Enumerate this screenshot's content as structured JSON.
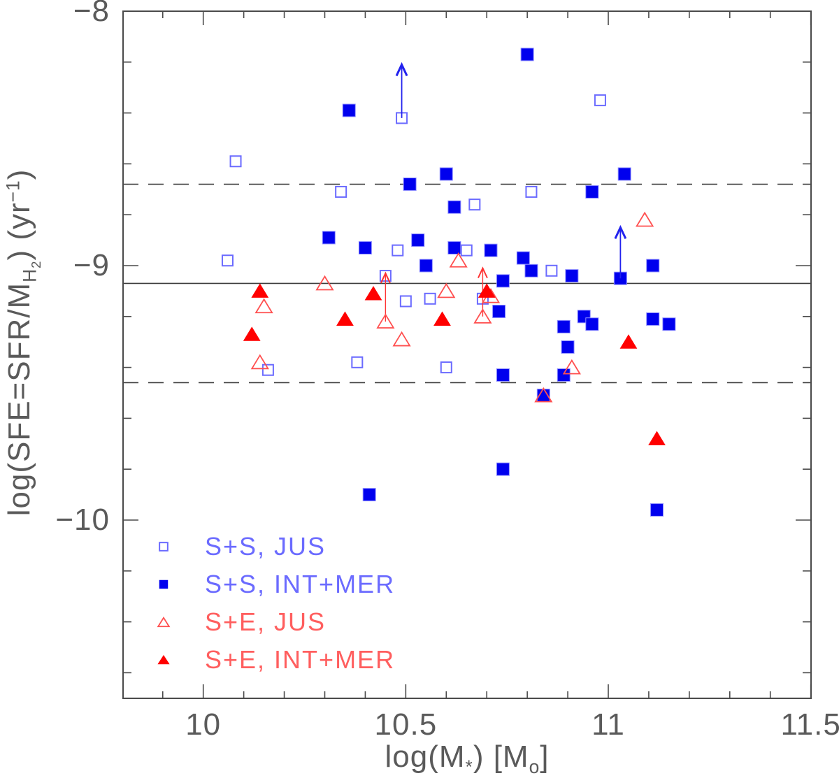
{
  "figure_colors": {
    "frame": "#4a4a4a",
    "tick": "#4a4a4a",
    "label_text": "#5a5a5a",
    "ref_line": "#3c3c3c",
    "blue_filled": "#0000ee",
    "blue_filled_halo": "#9090ff",
    "blue_open": "#6b6bff",
    "red_filled": "#ff0000",
    "red_open": "#ff5050",
    "blue_arrow": "#2222ee",
    "red_arrow": "#ff3333",
    "legend_blue_text": "#6b6bff",
    "legend_red_text": "#ff5e5e"
  },
  "chart_data": {
    "type": "scatter",
    "title": "",
    "xlabel": "log(M*) [Mo]",
    "ylabel": "log(SFE=SFR/M_H2) (yr^-1)",
    "xlabel_parts": [
      {
        "t": "log(M",
        "style": ""
      },
      {
        "t": "*",
        "style": "sub"
      },
      {
        "t": ") [M",
        "style": ""
      },
      {
        "t": "o",
        "style": "sub"
      },
      {
        "t": "]",
        "style": ""
      }
    ],
    "ylabel_parts": [
      {
        "t": "log(SFE=SFR/M",
        "style": ""
      },
      {
        "t": "H",
        "style": "sub"
      },
      {
        "t": "2",
        "style": "subsub"
      },
      {
        "t": ") (yr",
        "style": ""
      },
      {
        "t": "−1",
        "style": "sup"
      },
      {
        "t": ")",
        "style": ""
      }
    ],
    "x_axis": {
      "min": 9.8,
      "max": 11.5,
      "major_ticks": [
        10,
        10.5,
        11,
        11.5
      ],
      "major_labels": [
        "10",
        "10.5",
        "11",
        "11.5"
      ],
      "minor_step": 0.1,
      "grid": false
    },
    "y_axis": {
      "min": -10.7,
      "max": -8.0,
      "major_ticks": [
        -8,
        -9,
        -10
      ],
      "major_labels": [
        "−8",
        "−9",
        "−10"
      ],
      "minor_step": 0.2,
      "grid": false
    },
    "ref_lines": {
      "solid": [
        -9.07
      ],
      "dashed": [
        -8.68,
        -9.46
      ]
    },
    "series": [
      {
        "name": "S+S, JUS",
        "symbol": "open-square",
        "color": "#6b6bff",
        "points": [
          [
            10.08,
            -8.59
          ],
          [
            10.49,
            -8.42
          ],
          [
            10.98,
            -8.35
          ],
          [
            10.34,
            -8.71
          ],
          [
            10.67,
            -8.76
          ],
          [
            10.81,
            -8.71
          ],
          [
            10.06,
            -8.98
          ],
          [
            10.48,
            -8.94
          ],
          [
            10.65,
            -8.94
          ],
          [
            10.86,
            -9.02
          ],
          [
            10.45,
            -9.04
          ],
          [
            10.5,
            -9.14
          ],
          [
            10.56,
            -9.13
          ],
          [
            10.69,
            -9.13
          ],
          [
            10.16,
            -9.41
          ],
          [
            10.38,
            -9.38
          ],
          [
            10.6,
            -9.4
          ]
        ]
      },
      {
        "name": "S+S, INT+MER",
        "symbol": "filled-square",
        "color": "#0000ee",
        "points": [
          [
            10.8,
            -8.17
          ],
          [
            10.36,
            -8.39
          ],
          [
            10.6,
            -8.64
          ],
          [
            10.51,
            -8.68
          ],
          [
            10.62,
            -8.77
          ],
          [
            10.96,
            -8.71
          ],
          [
            11.04,
            -8.64
          ],
          [
            10.31,
            -8.89
          ],
          [
            10.4,
            -8.93
          ],
          [
            10.53,
            -8.9
          ],
          [
            10.55,
            -9.0
          ],
          [
            10.62,
            -8.93
          ],
          [
            10.71,
            -8.94
          ],
          [
            10.79,
            -8.97
          ],
          [
            10.81,
            -9.02
          ],
          [
            10.91,
            -9.04
          ],
          [
            11.03,
            -9.05
          ],
          [
            11.11,
            -9.0
          ],
          [
            10.74,
            -9.06
          ],
          [
            10.73,
            -9.18
          ],
          [
            10.94,
            -9.2
          ],
          [
            10.96,
            -9.23
          ],
          [
            10.89,
            -9.24
          ],
          [
            10.9,
            -9.32
          ],
          [
            11.11,
            -9.21
          ],
          [
            11.15,
            -9.23
          ],
          [
            10.74,
            -9.43
          ],
          [
            10.89,
            -9.43
          ],
          [
            10.84,
            -9.51
          ],
          [
            10.74,
            -9.8
          ],
          [
            10.41,
            -9.9
          ],
          [
            11.12,
            -9.96
          ]
        ]
      },
      {
        "name": "S+E, JUS",
        "symbol": "open-triangle",
        "color": "#ff5050",
        "points": [
          [
            11.09,
            -8.82
          ],
          [
            10.63,
            -8.98
          ],
          [
            10.3,
            -9.07
          ],
          [
            10.15,
            -9.16
          ],
          [
            10.6,
            -9.1
          ],
          [
            10.71,
            -9.12
          ],
          [
            10.45,
            -9.22
          ],
          [
            10.69,
            -9.2
          ],
          [
            10.49,
            -9.29
          ],
          [
            10.14,
            -9.38
          ],
          [
            10.91,
            -9.4
          ],
          [
            10.84,
            -9.51
          ]
        ]
      },
      {
        "name": "S+E, INT+MER",
        "symbol": "filled-triangle",
        "color": "#ff0000",
        "points": [
          [
            10.14,
            -9.1
          ],
          [
            10.42,
            -9.11
          ],
          [
            10.7,
            -9.1
          ],
          [
            10.35,
            -9.21
          ],
          [
            10.59,
            -9.21
          ],
          [
            10.12,
            -9.27
          ],
          [
            11.05,
            -9.3
          ],
          [
            11.12,
            -9.68
          ]
        ]
      }
    ],
    "arrows": [
      {
        "x": 10.49,
        "y": -8.42,
        "tip": -8.21,
        "color": "blue",
        "direction": "up"
      },
      {
        "x": 11.03,
        "y": -9.05,
        "tip": -8.85,
        "color": "blue",
        "direction": "up"
      },
      {
        "x": 10.45,
        "y": -9.22,
        "tip": -9.03,
        "color": "red",
        "direction": "up"
      },
      {
        "x": 10.69,
        "y": -9.2,
        "tip": -9.01,
        "color": "red",
        "direction": "up"
      }
    ],
    "legend_position": "bottom-left"
  },
  "legend": {
    "items": [
      {
        "label": "S+S, JUS",
        "symbol": "open-square",
        "symbol_color": "#6b6bff",
        "text_color": "#6b6bff"
      },
      {
        "label": "S+S, INT+MER",
        "symbol": "filled-square",
        "symbol_color": "#0000ee",
        "text_color": "#6b6bff"
      },
      {
        "label": "S+E, JUS",
        "symbol": "open-triangle",
        "symbol_color": "#ff5050",
        "text_color": "#ff5e5e"
      },
      {
        "label": "S+E, INT+MER",
        "symbol": "filled-triangle",
        "symbol_color": "#ff0000",
        "text_color": "#ff5e5e"
      }
    ]
  }
}
